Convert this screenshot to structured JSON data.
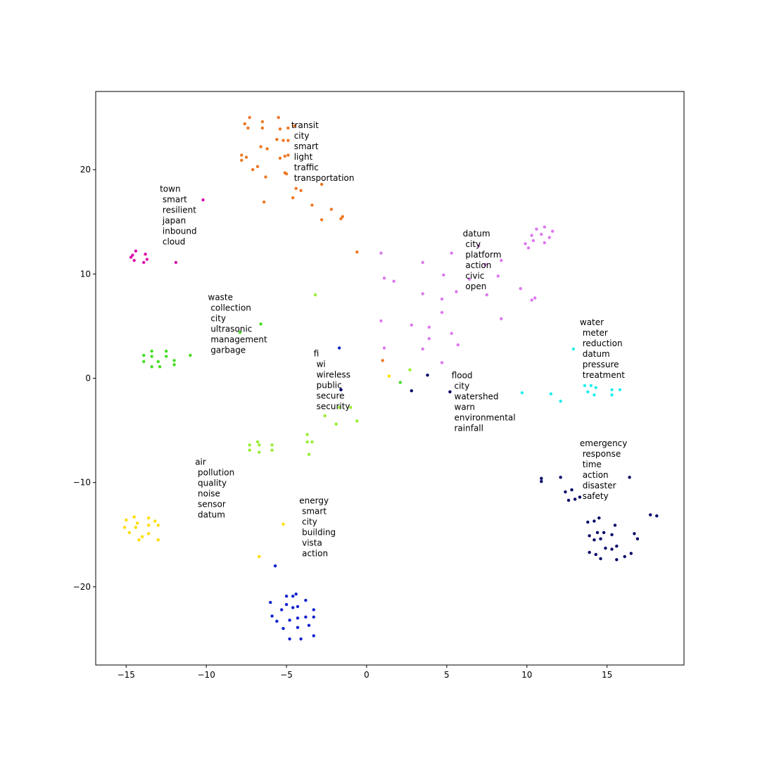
{
  "chart_data": {
    "type": "scatter",
    "title": "",
    "xlabel": "",
    "ylabel": "",
    "xlim": [
      -16.9,
      19.8
    ],
    "ylim": [
      -27.5,
      27.5
    ],
    "xticks": [
      -15,
      -10,
      -5,
      0,
      5,
      10,
      15
    ],
    "yticks": [
      -20,
      -10,
      0,
      10,
      20
    ],
    "xtick_labels": [
      "−15",
      "−10",
      "−5",
      "0",
      "5",
      "10",
      "15"
    ],
    "ytick_labels": [
      "−20",
      "−10",
      "0",
      "10",
      "20"
    ],
    "grid": false,
    "legend": "none",
    "clusters": [
      {
        "color": "#ee7722",
        "label_lines": [
          "transit",
          " city",
          " smart",
          " light",
          " traffic",
          " transportation"
        ],
        "label_at": [
          -4.7,
          24.0
        ],
        "points": [
          [
            -7.6,
            24.4
          ],
          [
            -7.4,
            24.0
          ],
          [
            -7.3,
            25.0
          ],
          [
            -6.5,
            24.6
          ],
          [
            -6.5,
            24.0
          ],
          [
            -5.5,
            25.0
          ],
          [
            -5.4,
            23.9
          ],
          [
            -4.9,
            24.0
          ],
          [
            -4.5,
            24.2
          ],
          [
            -5.6,
            22.9
          ],
          [
            -5.2,
            22.8
          ],
          [
            -4.9,
            22.8
          ],
          [
            -6.6,
            22.2
          ],
          [
            -6.2,
            22.0
          ],
          [
            -7.8,
            21.4
          ],
          [
            -7.5,
            21.2
          ],
          [
            -7.8,
            20.9
          ],
          [
            -7.1,
            20.0
          ],
          [
            -6.8,
            20.3
          ],
          [
            -5.4,
            21.1
          ],
          [
            -5.1,
            21.3
          ],
          [
            -4.9,
            21.4
          ],
          [
            -5.1,
            19.7
          ],
          [
            -5.0,
            19.6
          ],
          [
            -6.3,
            19.3
          ],
          [
            -4.4,
            18.2
          ],
          [
            -4.1,
            18.0
          ],
          [
            -2.8,
            18.6
          ],
          [
            -4.6,
            17.3
          ],
          [
            -6.4,
            16.9
          ],
          [
            -3.4,
            16.6
          ],
          [
            -2.2,
            16.2
          ],
          [
            -1.5,
            15.5
          ],
          [
            -2.8,
            15.2
          ],
          [
            -1.6,
            15.3
          ],
          [
            -0.6,
            12.1
          ],
          [
            1.0,
            1.7
          ]
        ]
      },
      {
        "color": "#dd11aa",
        "label_lines": [
          "town",
          " smart",
          " resilient",
          " japan",
          " inbound",
          " cloud"
        ],
        "label_at": [
          -12.9,
          17.9
        ],
        "points": [
          [
            -10.2,
            17.1
          ],
          [
            -14.6,
            11.8
          ],
          [
            -14.4,
            12.2
          ],
          [
            -14.7,
            11.6
          ],
          [
            -14.5,
            11.3
          ],
          [
            -13.9,
            11.1
          ],
          [
            -13.7,
            11.4
          ],
          [
            -13.8,
            11.9
          ],
          [
            -11.9,
            11.1
          ]
        ]
      },
      {
        "color": "#dd77ee",
        "label_lines": [
          "datum",
          " city",
          " platform",
          " action",
          " civic",
          " open"
        ],
        "label_at": [
          6.0,
          13.6
        ],
        "points": [
          [
            0.9,
            12.0
          ],
          [
            5.3,
            12.0
          ],
          [
            7.0,
            12.7
          ],
          [
            10.6,
            14.3
          ],
          [
            11.1,
            14.5
          ],
          [
            11.6,
            14.1
          ],
          [
            10.3,
            13.7
          ],
          [
            10.9,
            13.8
          ],
          [
            11.4,
            13.5
          ],
          [
            9.9,
            12.9
          ],
          [
            10.4,
            13.2
          ],
          [
            11.1,
            13.0
          ],
          [
            10.1,
            12.5
          ],
          [
            3.5,
            11.1
          ],
          [
            8.4,
            11.3
          ],
          [
            7.4,
            10.9
          ],
          [
            1.1,
            9.6
          ],
          [
            1.7,
            9.3
          ],
          [
            4.8,
            9.9
          ],
          [
            6.4,
            9.5
          ],
          [
            8.2,
            9.8
          ],
          [
            3.5,
            8.1
          ],
          [
            5.6,
            8.3
          ],
          [
            7.5,
            8.0
          ],
          [
            9.6,
            8.6
          ],
          [
            10.5,
            7.7
          ],
          [
            10.3,
            7.5
          ],
          [
            4.7,
            7.6
          ],
          [
            4.7,
            6.3
          ],
          [
            0.9,
            5.5
          ],
          [
            2.8,
            5.1
          ],
          [
            3.9,
            4.9
          ],
          [
            8.4,
            5.7
          ],
          [
            5.3,
            4.3
          ],
          [
            3.9,
            3.8
          ],
          [
            1.1,
            2.9
          ],
          [
            3.5,
            2.8
          ],
          [
            5.7,
            3.2
          ],
          [
            4.7,
            1.5
          ]
        ]
      },
      {
        "color": "#44dd22",
        "label_lines": [
          "waste",
          " collection",
          " city",
          " ultrasonic",
          " management",
          " garbage"
        ],
        "label_at": [
          -9.9,
          7.5
        ],
        "points": [
          [
            -6.6,
            5.2
          ],
          [
            -7.9,
            4.4
          ],
          [
            -13.4,
            2.6
          ],
          [
            -12.5,
            2.6
          ],
          [
            -13.9,
            2.2
          ],
          [
            -13.4,
            2.1
          ],
          [
            -12.5,
            2.1
          ],
          [
            -11.0,
            2.2
          ],
          [
            -13.9,
            1.6
          ],
          [
            -13.0,
            1.6
          ],
          [
            -12.0,
            1.7
          ],
          [
            -13.4,
            1.1
          ],
          [
            -12.9,
            1.1
          ],
          [
            -12.0,
            1.3
          ],
          [
            2.1,
            -0.4
          ]
        ]
      },
      {
        "color": "#99ee33",
        "label_lines": [
          "fi",
          " wi",
          " wireless",
          " public",
          " secure",
          " security"
        ],
        "label_at": [
          -3.3,
          2.1
        ],
        "points": [
          [
            -3.2,
            8.0
          ],
          [
            2.7,
            0.8
          ],
          [
            -1.7,
            -2.8
          ],
          [
            -1.0,
            -2.8
          ],
          [
            -2.6,
            -3.6
          ],
          [
            -1.9,
            -4.4
          ],
          [
            -0.6,
            -4.1
          ],
          [
            -3.7,
            -5.4
          ],
          [
            -3.7,
            -6.1
          ],
          [
            -3.4,
            -6.1
          ],
          [
            -7.3,
            -6.4
          ],
          [
            -6.8,
            -6.1
          ],
          [
            -6.7,
            -6.4
          ],
          [
            -5.9,
            -6.4
          ],
          [
            -7.3,
            -6.9
          ],
          [
            -6.7,
            -7.1
          ],
          [
            -5.9,
            -6.9
          ],
          [
            -3.6,
            -7.3
          ]
        ]
      },
      {
        "color": "#22eeee",
        "label_lines": [
          "water",
          " meter",
          " reduction",
          " datum",
          " pressure",
          " treatment"
        ],
        "label_at": [
          13.3,
          5.1
        ],
        "points": [
          [
            12.9,
            2.8
          ],
          [
            13.6,
            -0.7
          ],
          [
            14.3,
            -0.9
          ],
          [
            14.0,
            -0.7
          ],
          [
            13.8,
            -1.3
          ],
          [
            14.2,
            -1.6
          ],
          [
            15.3,
            -1.1
          ],
          [
            15.3,
            -1.6
          ],
          [
            15.8,
            -1.1
          ],
          [
            9.7,
            -1.4
          ],
          [
            11.5,
            -1.5
          ],
          [
            12.1,
            -2.2
          ]
        ]
      },
      {
        "color": "#ffdd00",
        "label_lines": [
          "air",
          " pollution",
          " quality",
          " noise",
          " sensor",
          " datum"
        ],
        "label_at": [
          -10.7,
          -8.3
        ],
        "points": [
          [
            1.4,
            0.2
          ],
          [
            -15.0,
            -13.6
          ],
          [
            -14.5,
            -13.3
          ],
          [
            -14.3,
            -13.9
          ],
          [
            -13.6,
            -13.4
          ],
          [
            -13.2,
            -13.7
          ],
          [
            -15.1,
            -14.3
          ],
          [
            -14.4,
            -14.3
          ],
          [
            -13.6,
            -14.1
          ],
          [
            -13.0,
            -14.1
          ],
          [
            -14.8,
            -14.8
          ],
          [
            -13.6,
            -14.9
          ],
          [
            -14.0,
            -15.2
          ],
          [
            -13.0,
            -15.5
          ],
          [
            -14.2,
            -15.5
          ],
          [
            -5.2,
            -14.0
          ],
          [
            -6.7,
            -17.1
          ]
        ]
      },
      {
        "color": "#1122cc",
        "label_lines": [
          "energy",
          " smart",
          " city",
          " building",
          " vista",
          " action"
        ],
        "label_at": [
          -4.2,
          -12.0
        ],
        "points": [
          [
            -1.7,
            2.9
          ],
          [
            -1.6,
            -1.1
          ],
          [
            -5.7,
            -18.0
          ],
          [
            -5.0,
            -20.9
          ],
          [
            -4.6,
            -20.9
          ],
          [
            -4.4,
            -20.7
          ],
          [
            -6.0,
            -21.5
          ],
          [
            -3.8,
            -21.3
          ],
          [
            -4.3,
            -21.9
          ],
          [
            -5.0,
            -21.7
          ],
          [
            -4.6,
            -22.0
          ],
          [
            -5.3,
            -22.2
          ],
          [
            -3.3,
            -22.2
          ],
          [
            -5.9,
            -22.8
          ],
          [
            -4.8,
            -23.2
          ],
          [
            -4.3,
            -23.0
          ],
          [
            -3.8,
            -22.9
          ],
          [
            -3.3,
            -22.9
          ],
          [
            -5.6,
            -23.3
          ],
          [
            -3.6,
            -23.7
          ],
          [
            -5.2,
            -24.0
          ],
          [
            -4.3,
            -23.9
          ],
          [
            -3.3,
            -24.7
          ],
          [
            -4.8,
            -25.0
          ],
          [
            -4.1,
            -25.0
          ]
        ]
      },
      {
        "color": "#000066",
        "label_lines": [
          "flood",
          " city",
          " watershed",
          " warn",
          " environmental",
          " rainfall"
        ],
        "label_at": [
          5.3,
          0.0
        ],
        "points": [
          [
            3.8,
            0.3
          ],
          [
            -1.6,
            -1.1
          ],
          [
            2.8,
            -1.2
          ],
          [
            5.2,
            -1.3
          ]
        ]
      },
      {
        "color": "#000066",
        "label_lines": [
          "emergency",
          " response",
          " time",
          " action",
          " disaster",
          " safety"
        ],
        "label_at": [
          13.3,
          -6.5
        ],
        "points": [
          [
            10.9,
            -9.6
          ],
          [
            10.9,
            -9.9
          ],
          [
            12.1,
            -9.5
          ],
          [
            16.4,
            -9.5
          ],
          [
            12.4,
            -10.9
          ],
          [
            12.8,
            -10.7
          ],
          [
            12.6,
            -11.7
          ],
          [
            13.0,
            -11.6
          ],
          [
            13.3,
            -11.4
          ],
          [
            17.7,
            -13.1
          ],
          [
            18.1,
            -13.2
          ],
          [
            13.8,
            -13.8
          ],
          [
            14.2,
            -13.7
          ],
          [
            14.5,
            -13.4
          ],
          [
            15.5,
            -14.1
          ],
          [
            14.4,
            -14.8
          ],
          [
            14.8,
            -14.8
          ],
          [
            13.9,
            -15.1
          ],
          [
            15.3,
            -15.0
          ],
          [
            16.7,
            -14.9
          ],
          [
            14.2,
            -15.5
          ],
          [
            14.6,
            -15.4
          ],
          [
            16.9,
            -15.4
          ],
          [
            15.6,
            -16.1
          ],
          [
            14.9,
            -16.3
          ],
          [
            15.3,
            -16.4
          ],
          [
            13.9,
            -16.7
          ],
          [
            14.3,
            -16.9
          ],
          [
            16.5,
            -16.8
          ],
          [
            16.1,
            -17.1
          ],
          [
            14.6,
            -17.3
          ],
          [
            15.6,
            -17.4
          ]
        ]
      }
    ]
  }
}
